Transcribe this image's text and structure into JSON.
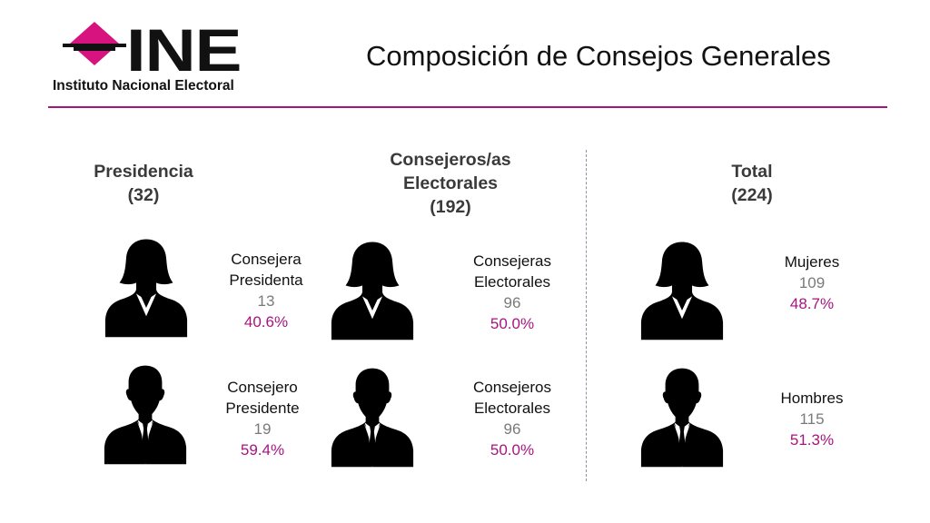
{
  "logo": {
    "brand": "INE",
    "subtitle": "Instituto Nacional Electoral",
    "accent": "#d6137f"
  },
  "page_title": "Composición de Consejos Generales",
  "colors": {
    "accent": "#a6157f",
    "heading": "#3a3a3a",
    "count": "#7a7a7a"
  },
  "sections": [
    {
      "heading": [
        "Presidencia",
        "(32)"
      ],
      "women": {
        "icon": "woman-silhouette-icon",
        "name": [
          "Consejera",
          "Presidenta"
        ],
        "count": "13",
        "percent": "40.6%"
      },
      "men": {
        "icon": "man-silhouette-icon",
        "name": [
          "Consejero",
          "Presidente"
        ],
        "count": "19",
        "percent": "59.4%"
      }
    },
    {
      "heading": [
        "Consejeros/as",
        "Electorales",
        "(192)"
      ],
      "women": {
        "icon": "woman-silhouette-icon",
        "name": [
          "Consejeras",
          "Electorales"
        ],
        "count": "96",
        "percent": "50.0%"
      },
      "men": {
        "icon": "man-silhouette-icon",
        "name": [
          "Consejeros",
          "Electorales"
        ],
        "count": "96",
        "percent": "50.0%"
      }
    },
    {
      "heading": [
        "Total",
        "(224)"
      ],
      "women": {
        "icon": "woman-silhouette-icon",
        "name": [
          "Mujeres"
        ],
        "count": "109",
        "percent": "48.7%"
      },
      "men": {
        "icon": "man-silhouette-icon",
        "name": [
          "Hombres"
        ],
        "count": "115",
        "percent": "51.3%"
      }
    }
  ]
}
